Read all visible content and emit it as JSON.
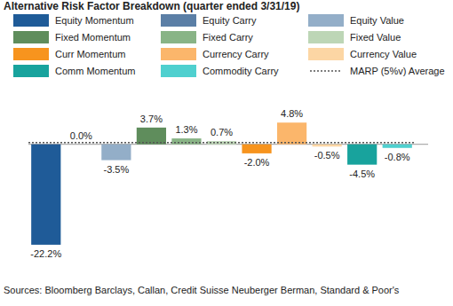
{
  "chart_data": {
    "type": "bar",
    "title": "Alternative Risk Factor Breakdown (quarter ended 3/31/19)",
    "categories": [
      "Equity Momentum",
      "Equity Carry",
      "Equity Value",
      "Fixed Momentum",
      "Fixed Carry",
      "Fixed Value",
      "Curr Momentum",
      "Currency Carry",
      "Currency Value",
      "Comm Momentum",
      "Commodity Carry"
    ],
    "values": [
      -22.2,
      0.0,
      -3.5,
      3.7,
      1.3,
      0.7,
      -2.0,
      4.8,
      -0.5,
      -4.5,
      -0.8
    ],
    "value_labels": [
      "-22.2%",
      "0.0%",
      "-3.5%",
      "3.7%",
      "1.3%",
      "0.7%",
      "-2.0%",
      "4.8%",
      "-0.5%",
      "-4.5%",
      "-0.8%"
    ],
    "colors": [
      "#1f5b98",
      "#5b7fa6",
      "#93aec8",
      "#5f8d5c",
      "#89b486",
      "#bdd6b6",
      "#f7941e",
      "#fbb66b",
      "#fcd6a4",
      "#18a39d",
      "#4fd0cf"
    ],
    "data_labels": true,
    "tick_labels": false,
    "legend": "top",
    "ylim": [
      -25,
      7
    ],
    "average_line": {
      "name": "MARP (5%v) Average",
      "value": 0.4,
      "line_style": "dotted",
      "color": "#555555"
    },
    "source": "Sources: Bloomberg Barclays, Callan, Credit Suisse Neuberger Berman, Standard & Poor's"
  }
}
